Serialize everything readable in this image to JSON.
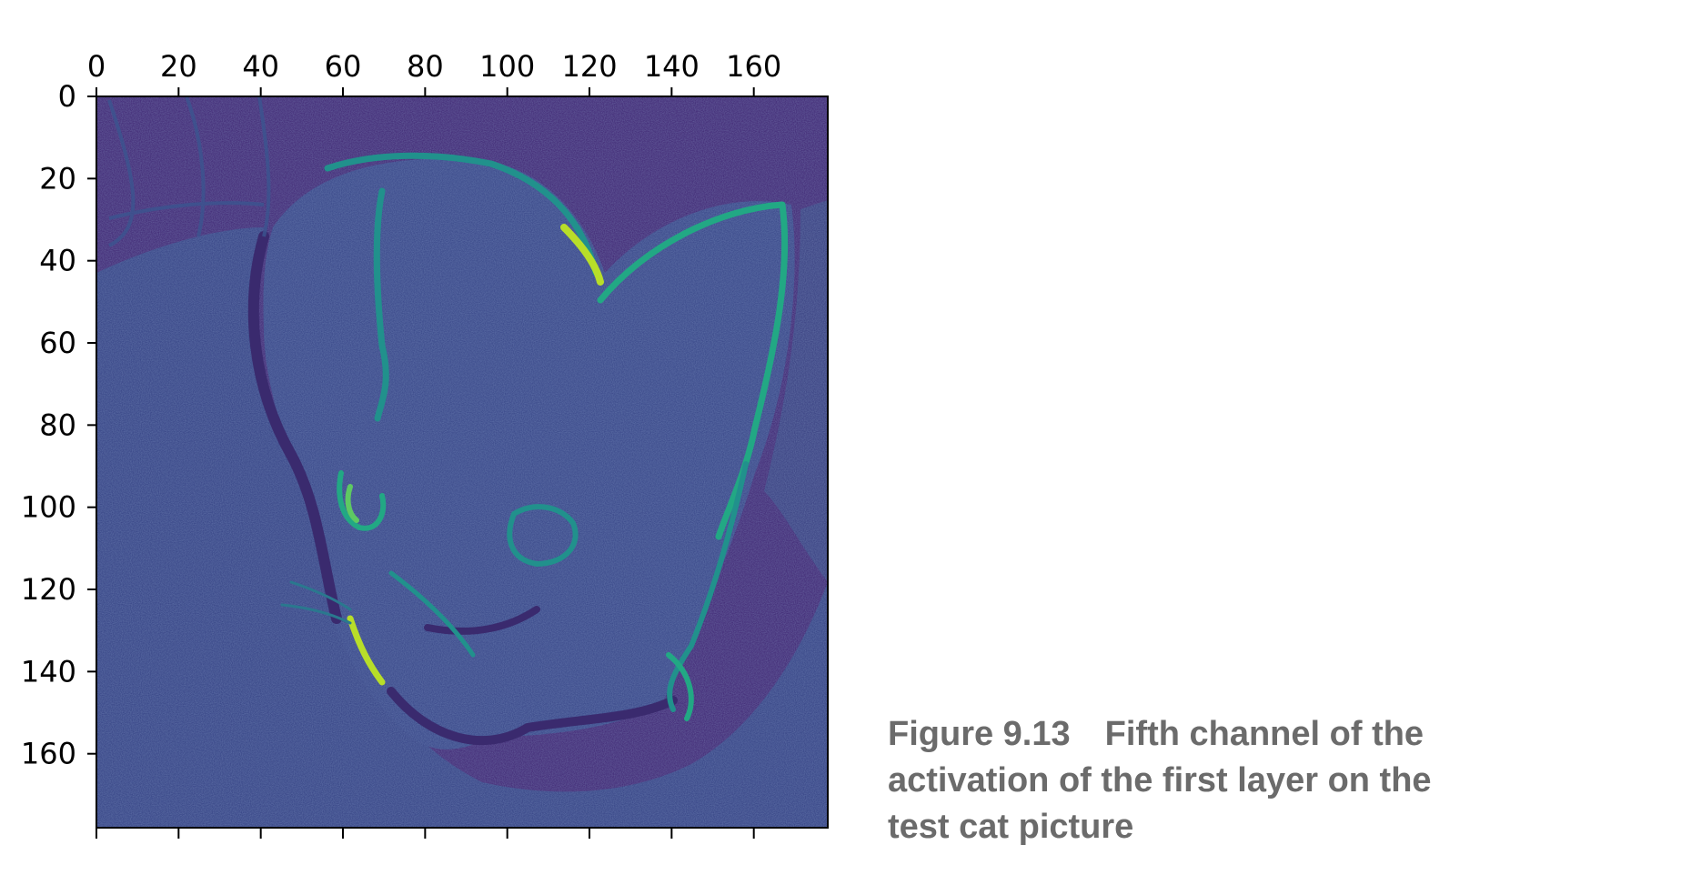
{
  "figure": {
    "number": "Figure 9.13",
    "caption": "Fifth channel of the activation of the first layer on the test cat picture"
  },
  "chart_data": {
    "type": "heatmap",
    "colormap": "viridis",
    "image_size": [
      178,
      178
    ],
    "xlim": [
      0,
      178
    ],
    "ylim": [
      178,
      0
    ],
    "x_ticks": [
      0,
      20,
      40,
      60,
      80,
      100,
      120,
      140,
      160
    ],
    "y_ticks": [
      0,
      20,
      40,
      60,
      80,
      100,
      120,
      140,
      160
    ],
    "x_tick_position": "top",
    "colors": {
      "background": "#46307a",
      "cat_face": "#3d4a8c",
      "mid": "#33638d",
      "edge_teal": "#21918c",
      "edge_green": "#5ec962",
      "edge_yellow": "#b8de29"
    }
  }
}
